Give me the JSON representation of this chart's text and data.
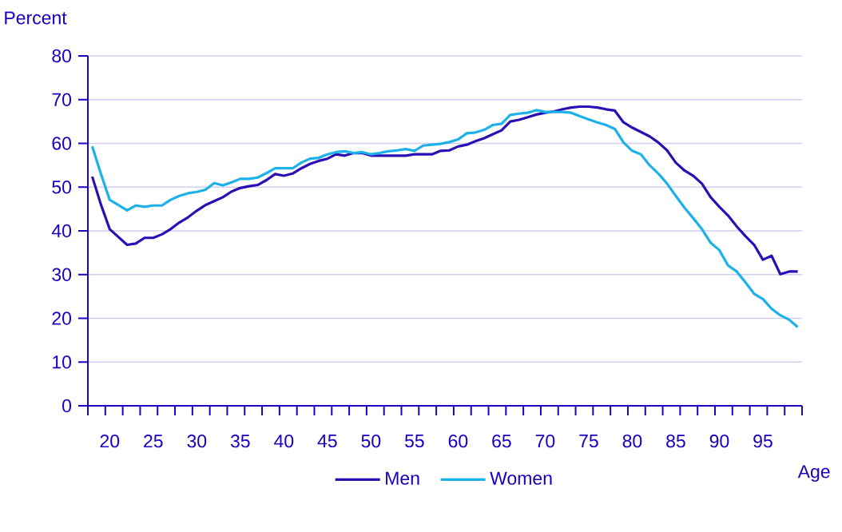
{
  "chart_data": {
    "type": "line",
    "ylabel": "Percent",
    "xlabel": "Age",
    "x": [
      18,
      19,
      20,
      21,
      22,
      23,
      24,
      25,
      26,
      27,
      28,
      29,
      30,
      31,
      32,
      33,
      34,
      35,
      36,
      37,
      38,
      39,
      40,
      41,
      42,
      43,
      44,
      45,
      46,
      47,
      48,
      49,
      50,
      51,
      52,
      53,
      54,
      55,
      56,
      57,
      58,
      59,
      60,
      61,
      62,
      63,
      64,
      65,
      66,
      67,
      68,
      69,
      70,
      71,
      72,
      73,
      74,
      75,
      76,
      77,
      78,
      79,
      80,
      81,
      82,
      83,
      84,
      85,
      86,
      87,
      88,
      89,
      90,
      91,
      92,
      93,
      94,
      95,
      96,
      97,
      98,
      99
    ],
    "series": [
      {
        "name": "Men",
        "color": "#2a0fb4",
        "values": [
          52.4,
          46,
          40.4,
          38.6,
          36.8,
          37.1,
          38.4,
          38.4,
          39.2,
          40.4,
          41.9,
          43.1,
          44.6,
          45.9,
          46.8,
          47.7,
          49.0,
          49.8,
          50.2,
          50.5,
          51.6,
          53.0,
          52.6,
          53.1,
          54.3,
          55.3,
          56.0,
          56.5,
          57.5,
          57.2,
          57.8,
          57.8,
          57.2,
          57.2,
          57.2,
          57.2,
          57.2,
          57.5,
          57.5,
          57.5,
          58.3,
          58.4,
          59.3,
          59.7,
          60.5,
          61.2,
          62.1,
          63.0,
          65.0,
          65.4,
          66.0,
          66.6,
          67.0,
          67.3,
          67.8,
          68.2,
          68.4,
          68.4,
          68.2,
          67.8,
          67.5,
          64.8,
          63.6,
          62.6,
          61.6,
          60.2,
          58.4,
          55.6,
          53.8,
          52.6,
          50.8,
          47.7,
          45.5,
          43.5,
          41.0,
          38.8,
          36.8,
          33.4,
          34.3,
          30.1,
          30.7,
          30.7
        ]
      },
      {
        "name": "Women",
        "color": "#1cb1e8",
        "values": [
          59.3,
          53,
          47.1,
          45.9,
          44.7,
          45.8,
          45.5,
          45.8,
          45.8,
          47.1,
          48.0,
          48.6,
          48.9,
          49.4,
          50.9,
          50.4,
          51.1,
          51.9,
          51.9,
          52.2,
          53.2,
          54.3,
          54.3,
          54.3,
          55.6,
          56.5,
          56.7,
          57.5,
          58.0,
          58.2,
          57.8,
          58.0,
          57.5,
          57.8,
          58.2,
          58.4,
          58.7,
          58.3,
          59.5,
          59.7,
          59.9,
          60.3,
          60.9,
          62.3,
          62.5,
          63.1,
          64.2,
          64.5,
          66.5,
          66.8,
          67.0,
          67.6,
          67.2,
          67.2,
          67.2,
          67.0,
          66.2,
          65.5,
          64.8,
          64.2,
          63.3,
          60.2,
          58.3,
          57.5,
          55.0,
          53.1,
          50.8,
          48.0,
          45.3,
          42.9,
          40.4,
          37.3,
          35.6,
          32.1,
          30.7,
          28.2,
          25.6,
          24.4,
          22.2,
          20.7,
          19.7,
          18.0
        ]
      }
    ],
    "xlim": [
      17.5,
      99.5
    ],
    "xticks": [
      20,
      25,
      30,
      35,
      40,
      45,
      50,
      55,
      60,
      65,
      70,
      75,
      80,
      85,
      90,
      95,
      {
        "value": 17.5,
        "label": null
      },
      {
        "value": 19.5,
        "label": null
      },
      {
        "value": 21.5,
        "label": null
      },
      {
        "value": 23.5,
        "label": null
      },
      {
        "value": 25.5,
        "label": null
      },
      {
        "value": 27.5,
        "label": null
      },
      {
        "value": 29.5,
        "label": null
      },
      {
        "value": 31.5,
        "label": null
      },
      {
        "value": 33.5,
        "label": null
      },
      {
        "value": 35.5,
        "label": null
      },
      {
        "value": 37.5,
        "label": null
      },
      {
        "value": 39.5,
        "label": null
      },
      {
        "value": 41.5,
        "label": null
      },
      {
        "value": 43.5,
        "label": null
      },
      {
        "value": 45.5,
        "label": null
      },
      {
        "value": 47.5,
        "label": null
      },
      {
        "value": 49.5,
        "label": null
      },
      {
        "value": 51.5,
        "label": null
      },
      {
        "value": 53.5,
        "label": null
      },
      {
        "value": 55.5,
        "label": null
      },
      {
        "value": 57.5,
        "label": null
      },
      {
        "value": 59.5,
        "label": null
      },
      {
        "value": 61.5,
        "label": null
      },
      {
        "value": 63.5,
        "label": null
      },
      {
        "value": 65.5,
        "label": null
      },
      {
        "value": 67.5,
        "label": null
      },
      {
        "value": 69.5,
        "label": null
      },
      {
        "value": 71.5,
        "label": null
      },
      {
        "value": 73.5,
        "label": null
      },
      {
        "value": 75.5,
        "label": null
      },
      {
        "value": 77.5,
        "label": null
      },
      {
        "value": 79.5,
        "label": null
      },
      {
        "value": 81.5,
        "label": null
      },
      {
        "value": 83.5,
        "label": null
      },
      {
        "value": 85.5,
        "label": null
      },
      {
        "value": 87.5,
        "label": null
      },
      {
        "value": 89.5,
        "label": null
      },
      {
        "value": 91.5,
        "label": null
      },
      {
        "value": 93.5,
        "label": null
      },
      {
        "value": 95.5,
        "label": null
      },
      {
        "value": 97.5,
        "label": null
      },
      {
        "value": 99.5,
        "label": null
      }
    ],
    "ylim": [
      0,
      80
    ],
    "yticks": [
      0,
      10,
      20,
      30,
      40,
      50,
      60,
      70,
      80
    ],
    "grid": "y",
    "legend": "bottom",
    "marker": "none",
    "line_style": "solid"
  }
}
